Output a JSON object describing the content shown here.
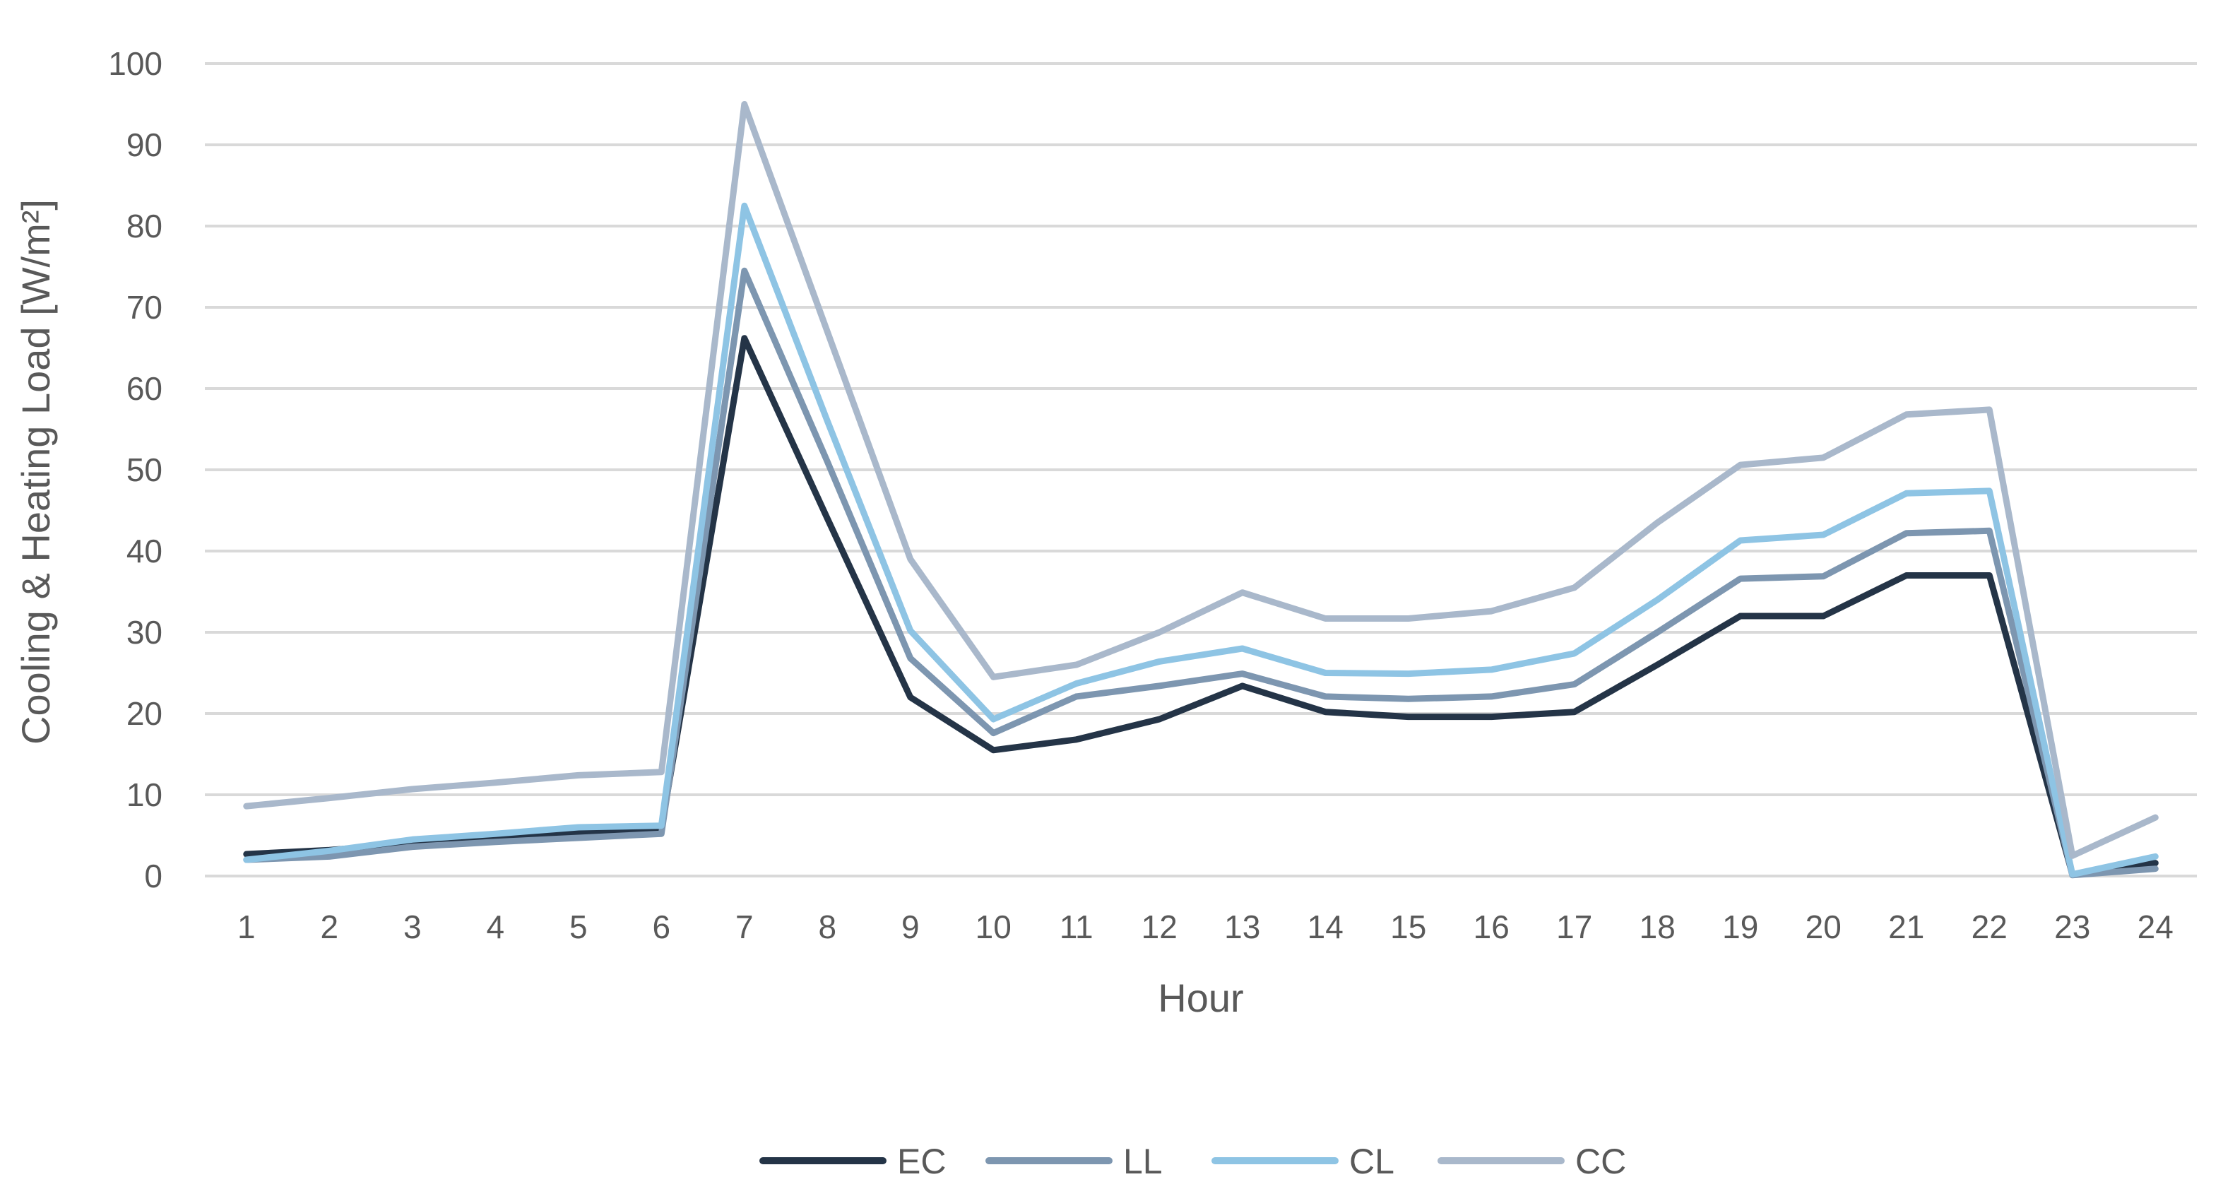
{
  "chart_data": {
    "type": "line",
    "title": "",
    "xlabel": "Hour",
    "ylabel": "Cooling & Heating Load [W/m²]",
    "x": [
      "1",
      "2",
      "3",
      "4",
      "5",
      "6",
      "7",
      "8",
      "9",
      "10",
      "11",
      "12",
      "13",
      "14",
      "15",
      "16",
      "17",
      "18",
      "19",
      "20",
      "21",
      "22",
      "23",
      "24"
    ],
    "ylim": [
      0,
      100
    ],
    "yticks": [
      "0",
      "10",
      "20",
      "30",
      "40",
      "50",
      "60",
      "70",
      "80",
      "90",
      "100"
    ],
    "grid": true,
    "legend_position": "bottom",
    "series": [
      {
        "name": "EC",
        "color": "#243447",
        "values": [
          2.7,
          3.2,
          4.0,
          4.6,
          5.4,
          5.9,
          66.2,
          44.0,
          22.0,
          15.5,
          16.8,
          19.3,
          23.4,
          20.2,
          19.6,
          19.6,
          20.2,
          26.0,
          32.0,
          32.0,
          37.0,
          37.0,
          0.2,
          1.6
        ]
      },
      {
        "name": "LL",
        "color": "#7d96b0",
        "values": [
          2.0,
          2.4,
          3.6,
          4.2,
          4.7,
          5.2,
          74.5,
          51.0,
          26.8,
          17.6,
          22.1,
          23.4,
          24.9,
          22.1,
          21.8,
          22.1,
          23.6,
          30.0,
          36.6,
          36.9,
          42.2,
          42.5,
          0.1,
          0.9
        ]
      },
      {
        "name": "CL",
        "color": "#8ec4e4",
        "values": [
          2.0,
          3.1,
          4.5,
          5.2,
          6.0,
          6.2,
          82.5,
          56.0,
          30.2,
          19.3,
          23.7,
          26.4,
          28.0,
          25.0,
          24.9,
          25.4,
          27.4,
          34.0,
          41.3,
          42.0,
          47.1,
          47.4,
          0.2,
          2.4
        ]
      },
      {
        "name": "CC",
        "color": "#a9b8cb",
        "values": [
          8.6,
          9.6,
          10.7,
          11.5,
          12.4,
          12.8,
          95.0,
          67.0,
          39.0,
          24.5,
          26.0,
          30.0,
          34.9,
          31.7,
          31.7,
          32.6,
          35.5,
          43.5,
          50.6,
          51.5,
          56.8,
          57.4,
          2.5,
          7.2
        ]
      }
    ]
  }
}
